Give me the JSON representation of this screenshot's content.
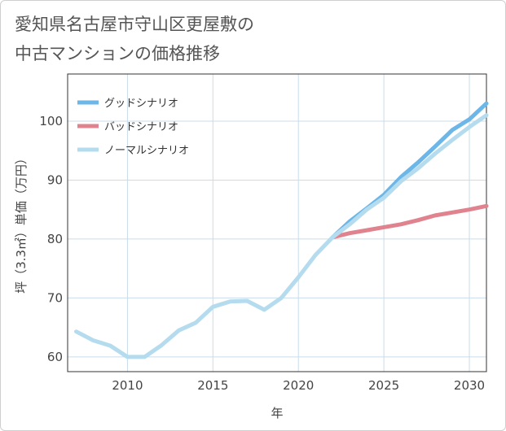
{
  "chart_data": {
    "type": "line",
    "title": "愛知県名古屋市守山区更屋敷の\n中古マンションの価格推移",
    "xlabel": "年",
    "ylabel": "坪（3.3㎡）単価（万円）",
    "xlim": [
      2006.5,
      2031
    ],
    "ylim": [
      57.5,
      108
    ],
    "x_ticks": [
      2010,
      2015,
      2020,
      2025,
      2030
    ],
    "y_ticks": [
      60,
      70,
      80,
      90,
      100
    ],
    "grid": true,
    "legend_position": "top-left",
    "series": [
      {
        "name": "グッドシナリオ",
        "color": "#6cb6e8",
        "x": [
          2022,
          2023,
          2024,
          2025,
          2026,
          2027,
          2028,
          2029,
          2030,
          2031
        ],
        "values": [
          80.3,
          83.0,
          85.2,
          87.5,
          90.5,
          93.0,
          95.7,
          98.5,
          100.3,
          103.0
        ]
      },
      {
        "name": "バッドシナリオ",
        "color": "#e0838e",
        "x": [
          2022,
          2023,
          2024,
          2025,
          2026,
          2027,
          2028,
          2029,
          2030,
          2031
        ],
        "values": [
          80.3,
          81.0,
          81.5,
          82.0,
          82.5,
          83.2,
          84.0,
          84.5,
          85.0,
          85.6
        ]
      },
      {
        "name": "ノーマルシナリオ",
        "color": "#b5dcee",
        "x": [
          2007,
          2008,
          2009,
          2010,
          2011,
          2012,
          2013,
          2014,
          2015,
          2016,
          2017,
          2018,
          2019,
          2020,
          2021,
          2022,
          2023,
          2024,
          2025,
          2026,
          2027,
          2028,
          2029,
          2030,
          2031
        ],
        "values": [
          64.3,
          62.8,
          61.9,
          60.0,
          60.0,
          62.0,
          64.5,
          65.8,
          68.5,
          69.4,
          69.5,
          68.0,
          70.0,
          73.5,
          77.3,
          80.3,
          82.5,
          85.0,
          87.0,
          89.8,
          92.0,
          94.5,
          96.8,
          99.0,
          101.0
        ]
      }
    ]
  }
}
